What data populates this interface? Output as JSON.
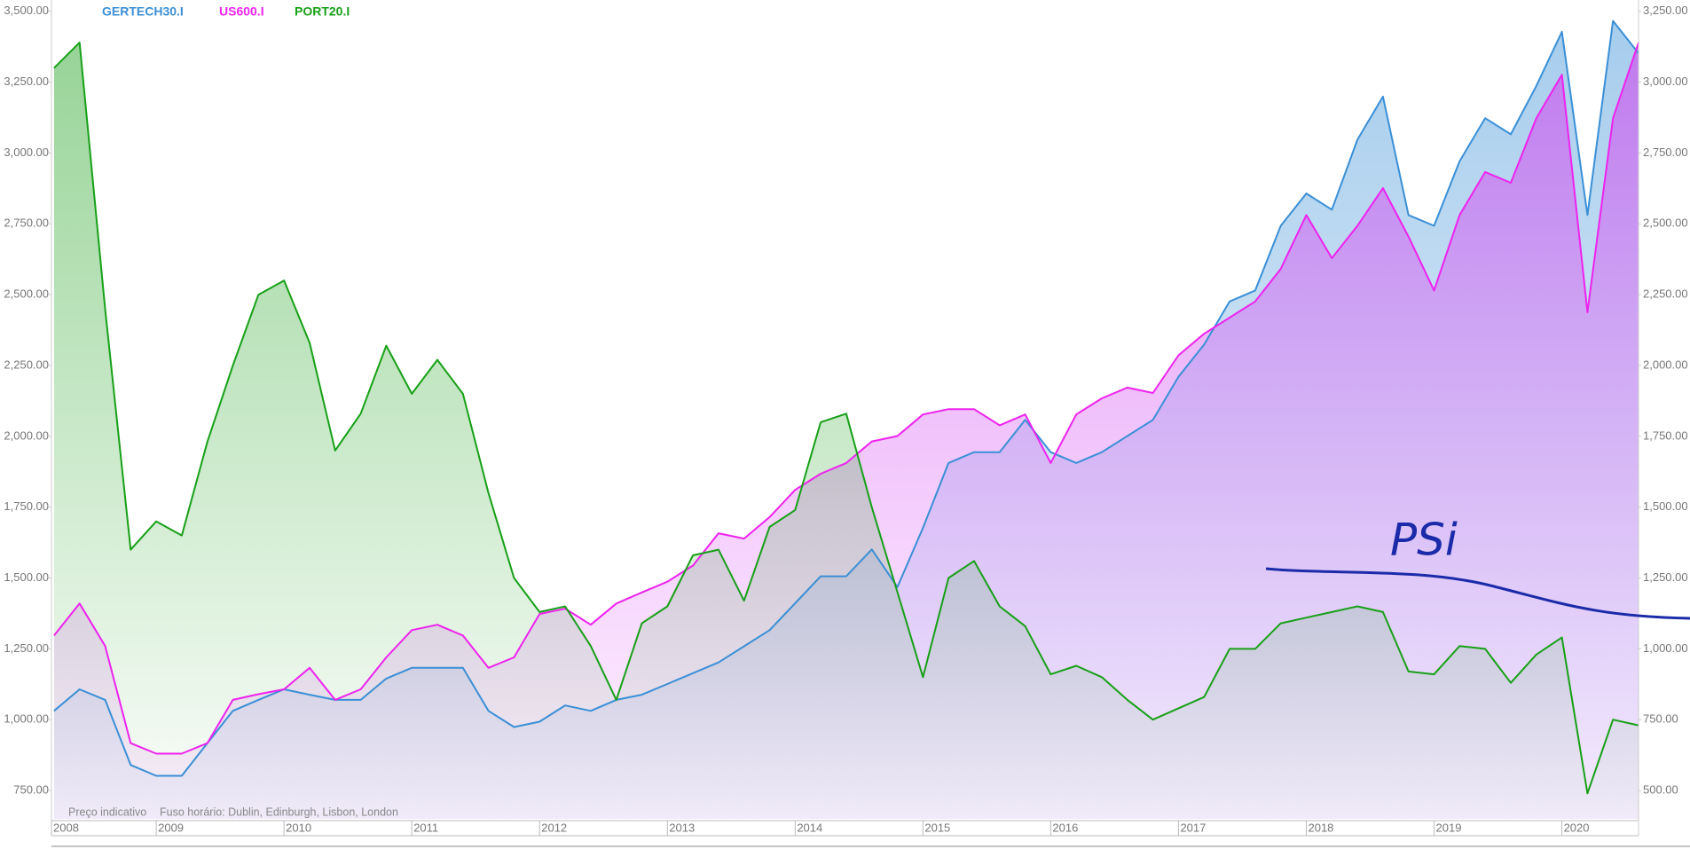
{
  "chart_data": {
    "type": "area",
    "legend": "top-left",
    "notes": [
      "Preço indicativo",
      "Fuso horário: Dublin, Edinburgh, Lisbon, London"
    ],
    "annotation": "PSi",
    "x": [
      2008.2,
      2008.4,
      2008.6,
      2008.8,
      2009.0,
      2009.2,
      2009.4,
      2009.6,
      2009.8,
      2010.0,
      2010.2,
      2010.4,
      2010.6,
      2010.8,
      2011.0,
      2011.2,
      2011.4,
      2011.6,
      2011.8,
      2012.0,
      2012.2,
      2012.4,
      2012.6,
      2012.8,
      2013.0,
      2013.2,
      2013.4,
      2013.6,
      2013.8,
      2014.0,
      2014.2,
      2014.4,
      2014.6,
      2014.8,
      2015.0,
      2015.2,
      2015.4,
      2015.6,
      2015.8,
      2016.0,
      2016.2,
      2016.4,
      2016.6,
      2016.8,
      2017.0,
      2017.2,
      2017.4,
      2017.6,
      2017.8,
      2018.0,
      2018.2,
      2018.4,
      2018.6,
      2018.8,
      2019.0,
      2019.2,
      2019.4,
      2019.6,
      2019.8,
      2020.0,
      2020.2,
      2020.4,
      2020.6
    ],
    "xlim": [
      2008.18,
      2020.6
    ],
    "xticks": [
      {
        "value": 2008.18,
        "label": "2008"
      },
      2009,
      2010,
      2011,
      2012,
      2013,
      2014,
      2015,
      2016,
      2017,
      2018,
      2019,
      2020
    ],
    "ylim": [
      650,
      3540
    ],
    "yticks": [
      {
        "value": 750,
        "label": "750.00"
      },
      {
        "value": 1000,
        "label": "1,000.00"
      },
      {
        "value": 1250,
        "label": "1,250.00"
      },
      {
        "value": 1500,
        "label": "1,500.00"
      },
      {
        "value": 1750,
        "label": "1,750.00"
      },
      {
        "value": 2000,
        "label": "2,000.00"
      },
      {
        "value": 2250,
        "label": "2,250.00"
      },
      {
        "value": 2500,
        "label": "2,500.00"
      },
      {
        "value": 2750,
        "label": "2,750.00"
      },
      {
        "value": 3000,
        "label": "3,000.00"
      },
      {
        "value": 3250,
        "label": "3,250.00"
      },
      {
        "value": 3500,
        "label": "3,500.00"
      }
    ],
    "y2lim": [
      400,
      3290
    ],
    "y2ticks": [
      {
        "value": 500,
        "label": "500.00"
      },
      {
        "value": 750,
        "label": "750.00"
      },
      {
        "value": 1000,
        "label": "1,000.00"
      },
      {
        "value": 1250,
        "label": "1,250.00"
      },
      {
        "value": 1500,
        "label": "1,500.00"
      },
      {
        "value": 1750,
        "label": "1,750.00"
      },
      {
        "value": 2000,
        "label": "2,000.00"
      },
      {
        "value": 2250,
        "label": "2,250.00"
      },
      {
        "value": 2500,
        "label": "2,500.00"
      },
      {
        "value": 2750,
        "label": "2,750.00"
      },
      {
        "value": 3000,
        "label": "3,000.00"
      },
      {
        "value": 3250,
        "label": "3,250.00"
      }
    ],
    "series": [
      {
        "name": "GERTECH30.I",
        "color": "#3a8fd6",
        "axis": "y2",
        "values": [
          781,
          857,
          820,
          590,
          552,
          552,
          667,
          781,
          820,
          857,
          838,
          820,
          820,
          895,
          933,
          933,
          933,
          781,
          724,
          743,
          800,
          781,
          820,
          838,
          876,
          914,
          952,
          1009,
          1066,
          1161,
          1256,
          1256,
          1351,
          1218,
          1427,
          1656,
          1694,
          1694,
          1808,
          1694,
          1656,
          1694,
          1751,
          1808,
          1960,
          2074,
          2226,
          2265,
          2493,
          2607,
          2550,
          2797,
          2949,
          2531,
          2493,
          2721,
          2873,
          2816,
          2987,
          3178,
          2531,
          3216,
          3102
        ]
      },
      {
        "name": "US600.I",
        "color": "#ee22ee",
        "axis": "y2",
        "values": [
          1047,
          1160,
          1010,
          667,
          630,
          630,
          667,
          820,
          840,
          857,
          933,
          820,
          857,
          970,
          1066,
          1085,
          1047,
          933,
          970,
          1123,
          1142,
          1085,
          1160,
          1199,
          1237,
          1294,
          1408,
          1389,
          1465,
          1561,
          1618,
          1656,
          1732,
          1751,
          1827,
          1846,
          1846,
          1789,
          1827,
          1656,
          1827,
          1884,
          1922,
          1903,
          2036,
          2112,
          2169,
          2226,
          2341,
          2531,
          2379,
          2493,
          2626,
          2455,
          2265,
          2531,
          2683,
          2645,
          2873,
          3026,
          2188,
          2873,
          3140
        ]
      },
      {
        "name": "PORT20.I",
        "color": "#17a017",
        "axis": "y",
        "values": [
          3300,
          3390,
          2450,
          1600,
          1700,
          1650,
          1980,
          2250,
          2500,
          2550,
          2330,
          1950,
          2080,
          2320,
          2150,
          2270,
          2150,
          1800,
          1500,
          1380,
          1400,
          1260,
          1070,
          1340,
          1400,
          1580,
          1600,
          1420,
          1680,
          1740,
          2050,
          2080,
          1750,
          1450,
          1150,
          1500,
          1560,
          1400,
          1330,
          1160,
          1190,
          1150,
          1070,
          1000,
          1040,
          1080,
          1250,
          1250,
          1340,
          1360,
          1380,
          1400,
          1380,
          1170,
          1160,
          1260,
          1250,
          1130,
          1230,
          1290,
          740,
          1000,
          980
        ]
      }
    ]
  }
}
